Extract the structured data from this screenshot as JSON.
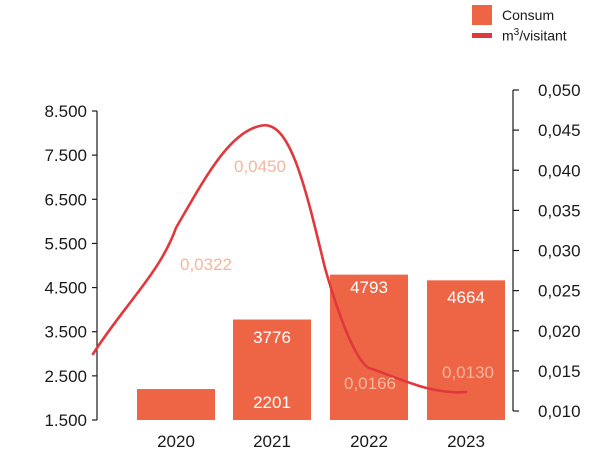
{
  "legend": {
    "bar_label": "Consum",
    "line_label_base": "m",
    "line_label_sup": "3",
    "line_label_rest": "/visitant"
  },
  "colors": {
    "bar": "#ee6546",
    "line": "#e0383d",
    "line_label": "#f5b6a0",
    "bar_label": "#ffffff",
    "axis": "#1a1a1a"
  },
  "chart_data": {
    "type": "bar+line",
    "categories": [
      "2020",
      "2021",
      "2022",
      "2023"
    ],
    "series": [
      {
        "name": "Consum",
        "type": "bar",
        "axis": "left",
        "values": [
          2201,
          3776,
          4793,
          4664
        ],
        "labels": [
          "",
          "3776",
          "4793",
          "4664"
        ]
      },
      {
        "name": "m3/visitant",
        "type": "line",
        "axis": "right",
        "values": [
          0.0322,
          0.045,
          0.0166,
          0.013
        ],
        "labels": [
          "0,0322",
          "0,0450",
          "0,0166",
          "0,0130"
        ]
      }
    ],
    "extra_labels": [
      "2201"
    ],
    "y_left": {
      "ylim": [
        1500,
        8500
      ],
      "ticks": [
        1500,
        2500,
        3500,
        4500,
        5500,
        6500,
        7500,
        8500
      ],
      "tick_labels": [
        "1.500",
        "2.500",
        "3.500",
        "4.500",
        "5.500",
        "6.500",
        "7.500",
        "8.500"
      ]
    },
    "y_right": {
      "ylim": [
        0.01,
        0.05
      ],
      "ticks": [
        0.01,
        0.015,
        0.02,
        0.025,
        0.03,
        0.035,
        0.04,
        0.045,
        0.05
      ],
      "tick_labels": [
        "0,010",
        "0,015",
        "0,020",
        "0,025",
        "0,030",
        "0,035",
        "0,040",
        "0,045",
        "0,050"
      ]
    },
    "legend_position": "top-right",
    "grid": false
  }
}
